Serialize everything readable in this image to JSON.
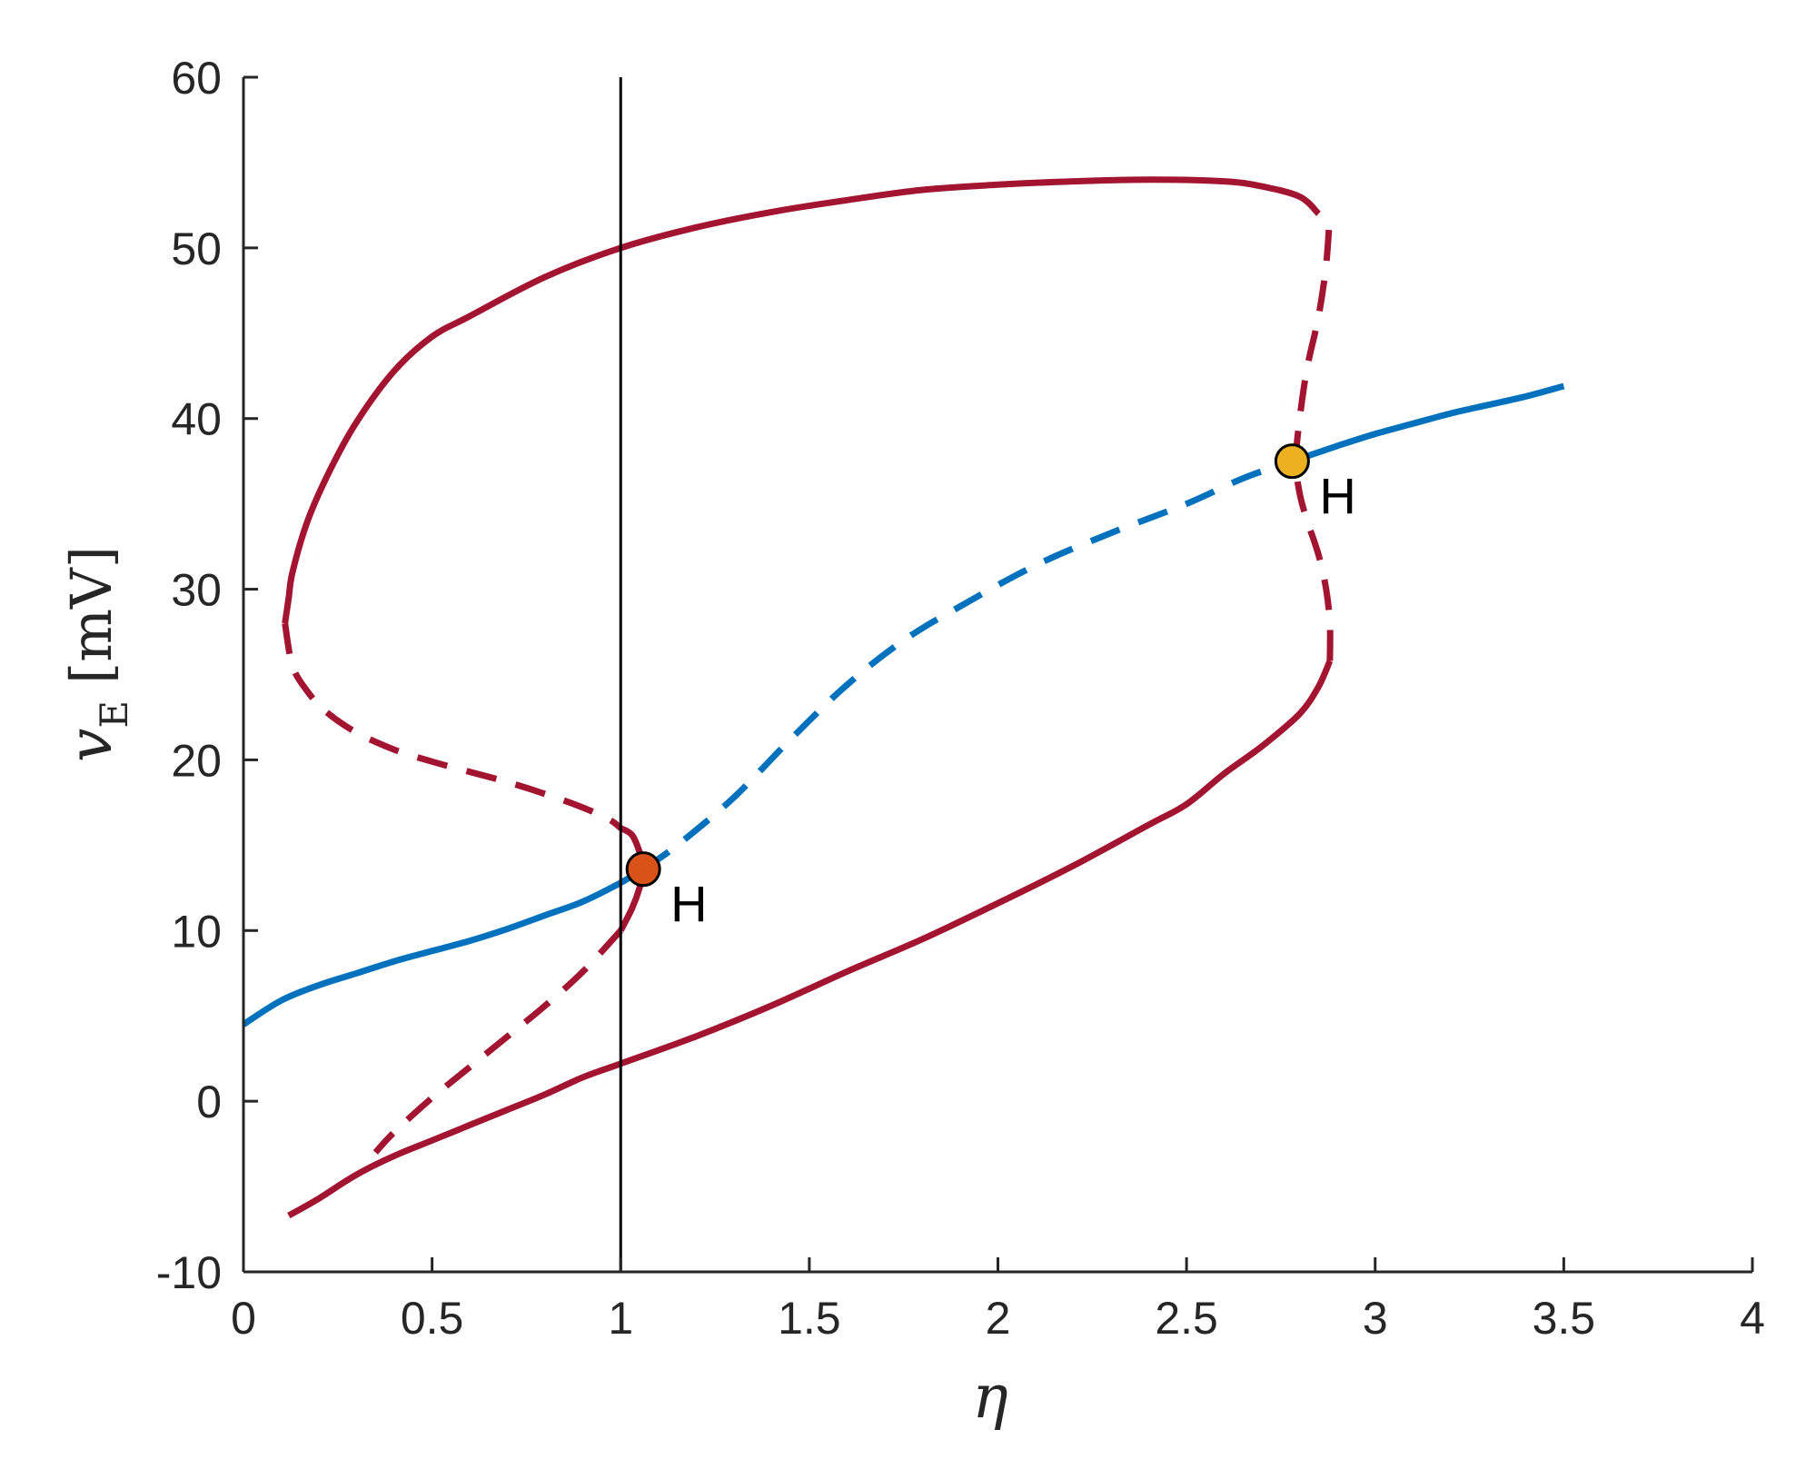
{
  "chart_data": {
    "type": "line",
    "title": "",
    "xlabel": "η",
    "ylabel": {
      "symbol": "v",
      "subscript": "E",
      "unit": "[mV]"
    },
    "xlim": [
      0,
      4
    ],
    "ylim": [
      -10,
      60
    ],
    "xticks": [
      0,
      0.5,
      1,
      1.5,
      2,
      2.5,
      3,
      3.5,
      4
    ],
    "xtick_labels": [
      "0",
      "0.5",
      "1",
      "1.5",
      "2",
      "2.5",
      "3",
      "3.5",
      "4"
    ],
    "yticks": [
      -10,
      0,
      10,
      20,
      30,
      40,
      50,
      60
    ],
    "ytick_labels": [
      "-10",
      "0",
      "10",
      "20",
      "30",
      "40",
      "50",
      "60"
    ],
    "grid": false,
    "reference_line": {
      "x": 1,
      "color": "#000000"
    },
    "colors": {
      "fixed_point_branch": "#0072BD",
      "limit_cycle_branch": "#A2142F",
      "hopf_low": "#D95319",
      "hopf_high": "#EDB120"
    },
    "series": [
      {
        "role": "fixed-point-stable-low",
        "color": "#0072BD",
        "style": "solid",
        "x": [
          0,
          0.1,
          0.2,
          0.3,
          0.4,
          0.5,
          0.6,
          0.7,
          0.8,
          0.9,
          1.0,
          1.06
        ],
        "y": [
          4.5,
          5.9,
          6.8,
          7.5,
          8.2,
          8.8,
          9.4,
          10.1,
          10.9,
          11.7,
          12.8,
          13.6
        ]
      },
      {
        "role": "fixed-point-unstable",
        "color": "#0072BD",
        "style": "dashed",
        "x": [
          1.06,
          1.15,
          1.3,
          1.45,
          1.6,
          1.75,
          1.9,
          2.1,
          2.3,
          2.5,
          2.65,
          2.78
        ],
        "y": [
          13.6,
          15.0,
          17.8,
          21.2,
          24.4,
          27.0,
          29.0,
          31.4,
          33.3,
          35.0,
          36.5,
          37.5
        ]
      },
      {
        "role": "fixed-point-stable-high",
        "color": "#0072BD",
        "style": "solid",
        "x": [
          2.78,
          2.9,
          3.0,
          3.1,
          3.2,
          3.3,
          3.4,
          3.5
        ],
        "y": [
          37.5,
          38.4,
          39.1,
          39.7,
          40.3,
          40.8,
          41.3,
          41.9
        ]
      },
      {
        "role": "cycle-max-stable-upper",
        "color": "#A2142F",
        "style": "solid",
        "x": [
          2.85,
          2.8,
          2.7,
          2.6,
          2.4,
          2.2,
          2.0,
          1.8,
          1.6,
          1.4,
          1.2,
          1.0,
          0.8,
          0.6,
          0.5,
          0.4,
          0.3,
          0.23,
          0.17,
          0.13,
          0.12,
          0.11
        ],
        "y": [
          52.0,
          53.0,
          53.6,
          53.9,
          54.0,
          53.9,
          53.7,
          53.4,
          52.8,
          52.1,
          51.2,
          50.0,
          48.3,
          46.0,
          44.8,
          42.8,
          39.8,
          37.0,
          34.0,
          31.0,
          29.5,
          28.0
        ]
      },
      {
        "role": "cycle-max-unstable-left",
        "color": "#A2142F",
        "style": "dashed",
        "x": [
          0.11,
          0.13,
          0.17,
          0.22,
          0.3,
          0.4,
          0.5,
          0.6,
          0.7,
          0.8,
          0.9,
          0.97,
          1.0
        ],
        "y": [
          28.0,
          25.5,
          24.0,
          22.8,
          21.6,
          20.6,
          19.9,
          19.3,
          18.7,
          18.0,
          17.2,
          16.5,
          16.0
        ]
      },
      {
        "role": "cycle-near-hopf-low",
        "color": "#A2142F",
        "style": "solid",
        "x": [
          1.0,
          1.03,
          1.05,
          1.06,
          1.05,
          1.03,
          1.0
        ],
        "y": [
          16.0,
          15.6,
          14.6,
          13.6,
          12.5,
          11.3,
          10.0
        ]
      },
      {
        "role": "cycle-min-unstable-left",
        "color": "#A2142F",
        "style": "dashed",
        "x": [
          1.0,
          0.9,
          0.8,
          0.7,
          0.6,
          0.5,
          0.4,
          0.35
        ],
        "y": [
          10.0,
          7.6,
          5.6,
          3.8,
          2.0,
          0.2,
          -1.8,
          -3.0
        ]
      },
      {
        "role": "cycle-min-stable-lower",
        "color": "#A2142F",
        "style": "solid",
        "x": [
          0.12,
          0.2,
          0.3,
          0.4,
          0.5,
          0.6,
          0.7,
          0.8,
          0.9,
          1.0,
          1.2,
          1.4,
          1.6,
          1.8,
          2.0,
          2.2,
          2.4,
          2.5,
          2.6,
          2.7,
          2.8,
          2.85,
          2.88
        ],
        "y": [
          -6.7,
          -5.7,
          -4.3,
          -3.2,
          -2.3,
          -1.4,
          -0.5,
          0.4,
          1.4,
          2.2,
          3.8,
          5.6,
          7.6,
          9.5,
          11.6,
          13.8,
          16.2,
          17.4,
          19.2,
          20.8,
          22.7,
          24.3,
          25.8
        ]
      },
      {
        "role": "cycle-unstable-right",
        "color": "#A2142F",
        "style": "dashed",
        "x": [
          2.88,
          2.88,
          2.87,
          2.85,
          2.82,
          2.8,
          2.79,
          2.8,
          2.82,
          2.85,
          2.87,
          2.88
        ],
        "y": [
          25.8,
          28.0,
          30.0,
          32.0,
          34.0,
          35.6,
          37.5,
          40.0,
          43.0,
          46.0,
          49.0,
          52.0
        ]
      }
    ],
    "annotations": [
      {
        "label": "H",
        "x": 1.06,
        "y": 13.6,
        "marker_color": "#D95319"
      },
      {
        "label": "H",
        "x": 2.78,
        "y": 37.5,
        "marker_color": "#EDB120"
      }
    ]
  }
}
